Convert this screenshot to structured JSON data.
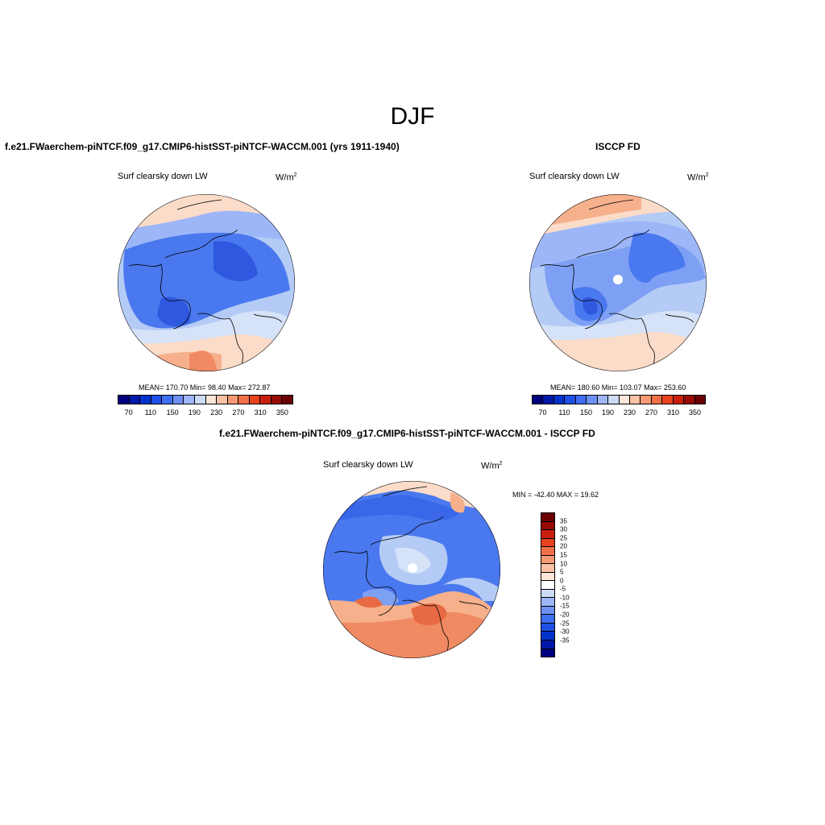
{
  "title": "DJF",
  "panels": {
    "model": {
      "title": "f.e21.FWaerchem-piNTCF.f09_g17.CMIP6-histSST-piNTCF-WACCM.001 (yrs 1911-1940)",
      "variable": "Surf clearsky down LW",
      "units_base": "W/m",
      "units_exp": "2",
      "stats": "MEAN= 170.70  Min=  98.40  Max= 272.87",
      "mean": 170.7,
      "min": 98.4,
      "max": 272.87
    },
    "obs": {
      "title": "ISCCP FD",
      "variable": "Surf clearsky down LW",
      "units_base": "W/m",
      "units_exp": "2",
      "stats": "MEAN= 180.60  Min= 103.07  Max= 253.60",
      "mean": 180.6,
      "min": 103.07,
      "max": 253.6
    },
    "diff": {
      "title": "f.e21.FWaerchem-piNTCF.f09_g17.CMIP6-histSST-piNTCF-WACCM.001 - ISCCP FD",
      "variable": "Surf clearsky down LW",
      "units_base": "W/m",
      "units_exp": "2",
      "stats": "MIN = -42.40 MAX =  19.62",
      "min": -42.4,
      "max": 19.62
    }
  },
  "colorbar_main": {
    "colors": [
      "#00007f",
      "#0018a8",
      "#0033cc",
      "#1f50e6",
      "#3f6ff0",
      "#6e90f5",
      "#9db6f7",
      "#cddbf5",
      "#fce6d8",
      "#f9c2a4",
      "#f59a74",
      "#f07048",
      "#e8431e",
      "#c8200d",
      "#960a04",
      "#6b0000"
    ],
    "labels": [
      "70",
      "110",
      "150",
      "190",
      "230",
      "270",
      "310",
      "350"
    ]
  },
  "colorbar_diff": {
    "colors": [
      "#6b0000",
      "#960a04",
      "#c8200d",
      "#e8431e",
      "#f07048",
      "#f59a74",
      "#f9c2a4",
      "#fce6d8",
      "#ffffff",
      "#cddbf5",
      "#9db6f7",
      "#6e90f5",
      "#3f6ff0",
      "#1f50e6",
      "#0033cc",
      "#0018a8",
      "#00007f"
    ],
    "labels": [
      "35",
      "30",
      "25",
      "20",
      "15",
      "10",
      "5",
      "0",
      "-5",
      "-10",
      "-15",
      "-20",
      "-25",
      "-30",
      "-35"
    ]
  },
  "map_colors": {
    "deep_blue": "#2e58e0",
    "blue": "#4a78ee",
    "mid_blue": "#7ea0f4",
    "light_blue": "#b4cbf6",
    "pale_blue": "#d6e2f7",
    "pale_orange": "#fbdcc8",
    "orange": "#f6b08c",
    "dark_orange": "#f08a62",
    "red_orange": "#e86a44"
  }
}
